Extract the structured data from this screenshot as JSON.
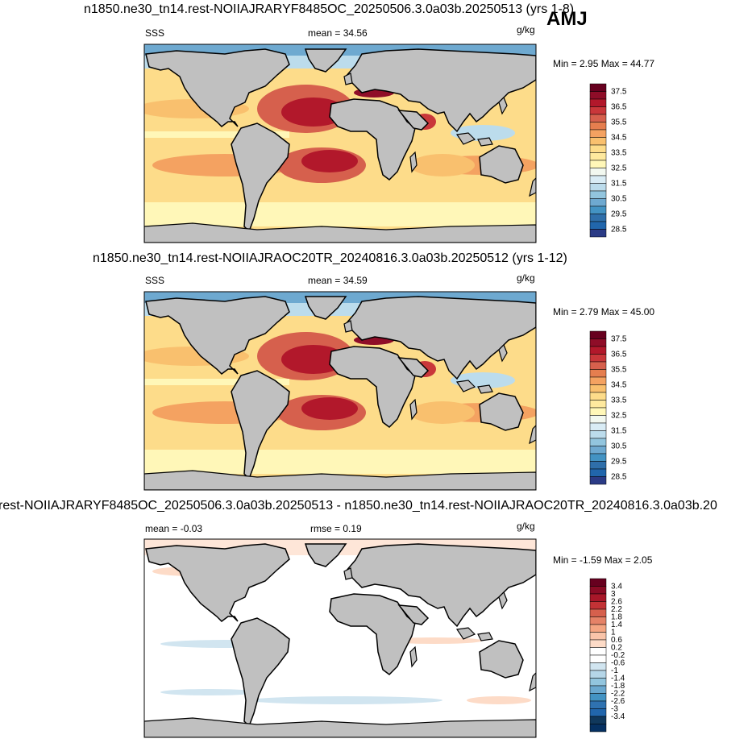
{
  "season": "AMJ",
  "panels": [
    {
      "title": "n1850.ne30_tn14.rest-NOIIAJRARYF8485OC_20250506.3.0a03b.20250513 (yrs 1-8)",
      "left_label": "SSS",
      "center_label": "mean =  34.56",
      "right_label": "",
      "units": "g/kg",
      "minmax": "Min =   2.95 Max =  44.77",
      "colorbar_ticks": [
        "37.5",
        "37",
        "36.5",
        "36",
        "35.5",
        "35",
        "34.5",
        "34",
        "33.5",
        "33",
        "32.5",
        "32",
        "31.5",
        "31",
        "30.5",
        "30",
        "29.5",
        "29",
        "28.5"
      ],
      "colorbar_labels": [
        "37.5",
        "36.5",
        "35.5",
        "34.5",
        "33.5",
        "32.5",
        "31.5",
        "30.5",
        "29.5",
        "28.5"
      ],
      "colors": [
        "#67001f",
        "#8f0d28",
        "#b2182b",
        "#c9373a",
        "#d6604d",
        "#e57e4f",
        "#f4a261",
        "#f9c06e",
        "#fddc8a",
        "#fee99e",
        "#fff7b8",
        "#f2f8f0",
        "#d9ecf5",
        "#bcdcec",
        "#92c5de",
        "#6ea9d0",
        "#4393c3",
        "#2f6faa",
        "#2166ac",
        "#2b3b86"
      ]
    },
    {
      "title": "n1850.ne30_tn14.rest-NOIIAJRAOC20TR_20240816.3.0a03b.20250512 (yrs 1-12)",
      "left_label": "SSS",
      "center_label": "mean =  34.59",
      "right_label": "",
      "units": "g/kg",
      "minmax": "Min =   2.79 Max =  45.00",
      "colorbar_labels": [
        "37.5",
        "36.5",
        "35.5",
        "34.5",
        "33.5",
        "32.5",
        "31.5",
        "30.5",
        "29.5",
        "28.5"
      ]
    },
    {
      "title": "rest-NOIIAJRARYF8485OC_20250506.3.0a03b.20250513 - n1850.ne30_tn14.rest-NOIIAJRAOC20TR_20240816.3.0a03b.20",
      "left_label": "mean =  -0.03",
      "center_label": "rmse =   0.19",
      "units": "g/kg",
      "minmax": "Min =  -1.59 Max =   2.05",
      "colorbar_labels": [
        "3.4",
        "3",
        "2.6",
        "2.2",
        "1.8",
        "1.4",
        "1",
        "0.6",
        "0.2",
        "-0.2",
        "-0.6",
        "-1",
        "-1.4",
        "-1.8",
        "-2.2",
        "-2.6",
        "-3",
        "-3.4"
      ],
      "colors": [
        "#67001f",
        "#8a0b25",
        "#a81729",
        "#c23235",
        "#d6604d",
        "#e58267",
        "#f4a582",
        "#f9c4a9",
        "#fddbc7",
        "#ffffff",
        "#ffffff",
        "#d1e5f0",
        "#b5d6e8",
        "#92c5de",
        "#6aa8cf",
        "#4393c3",
        "#2f72b0",
        "#2166ac",
        "#10385c",
        "#053061"
      ]
    }
  ]
}
